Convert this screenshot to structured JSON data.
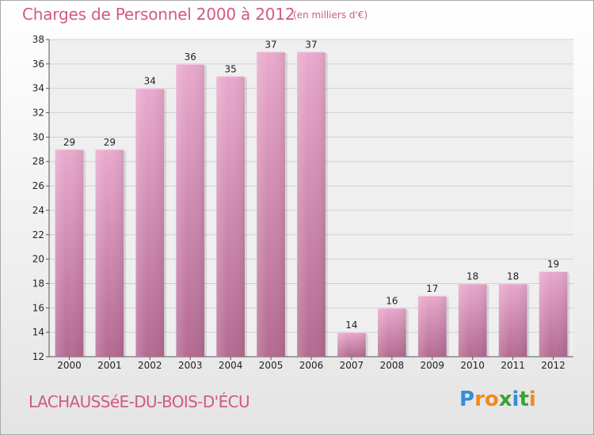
{
  "header": {
    "title": "Charges de Personnel 2000 à 2012",
    "unit": "(en milliers d'€)"
  },
  "footer": {
    "commune": "LACHAUSSéE-DU-BOIS-D'ÉCU",
    "logo_letters": [
      "P",
      "r",
      "o",
      "x",
      "i",
      "t",
      "i"
    ],
    "logo_colors": [
      "#2f8fd8",
      "#f08a1c",
      "#f08a1c",
      "#3aa335",
      "#2f8fd8",
      "#3aa335",
      "#f08a1c"
    ]
  },
  "chart_data": {
    "type": "bar",
    "categories": [
      "2000",
      "2001",
      "2002",
      "2003",
      "2004",
      "2005",
      "2006",
      "2007",
      "2008",
      "2009",
      "2010",
      "2011",
      "2012"
    ],
    "values": [
      29,
      29,
      34,
      36,
      35,
      37,
      37,
      14,
      16,
      17,
      18,
      18,
      19
    ],
    "ylim": [
      12,
      38
    ],
    "yticks": [
      12,
      14,
      16,
      18,
      20,
      22,
      24,
      26,
      28,
      30,
      32,
      34,
      36,
      38
    ],
    "grid": true,
    "bar_color": "#d98fb6",
    "bar_color_dark": "#b46a92"
  }
}
